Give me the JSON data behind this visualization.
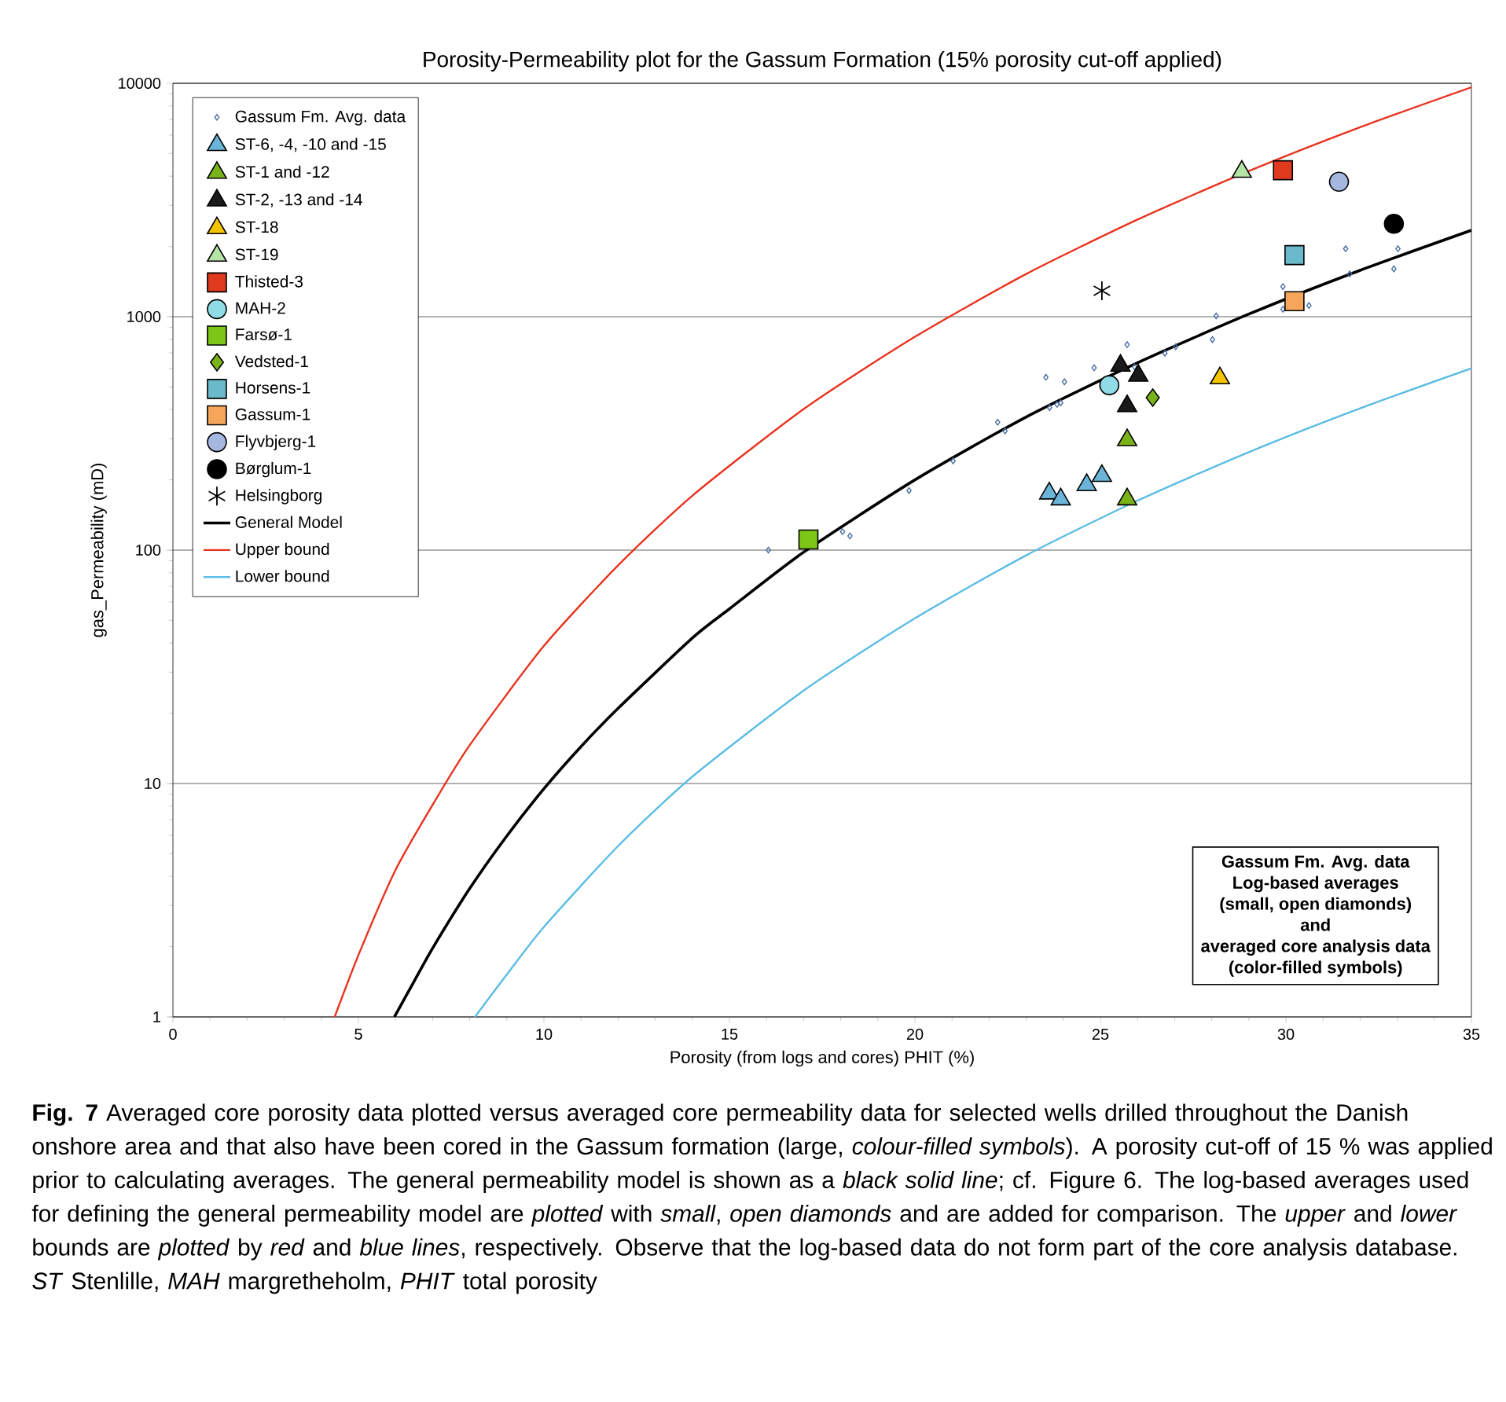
{
  "chart_data": {
    "type": "scatter",
    "title": "Porosity-Permeability plot for the Gassum Formation (15% porosity cut-off applied)",
    "xlabel": "Porosity (from logs and cores) PHIT (%)",
    "ylabel": "gas_Permeability (mD)",
    "xlim": [
      0,
      35
    ],
    "xticks": [
      0,
      5,
      10,
      15,
      20,
      25,
      30,
      35
    ],
    "ylim": [
      1,
      10000
    ],
    "yticks": [
      1,
      10,
      100,
      1000,
      10000
    ],
    "log": "y",
    "grid": "y",
    "legend": "top left",
    "series": [
      {
        "name": "Gassum Fm. Avg. data",
        "type": "scatter",
        "marker": "diamond",
        "color": "#4a6fa5",
        "x": [
          16.05,
          18.05,
          18.25,
          19.84,
          21.03,
          22.23,
          22.43,
          23.53,
          24.03,
          23.63,
          23.83,
          23.93,
          24.83,
          25.72,
          25.92,
          26.74,
          27.03,
          28.02,
          28.12,
          29.92,
          29.92,
          30.62,
          31.61,
          31.72,
          32.91,
          33.02
        ],
        "values": [
          100,
          120,
          115,
          180,
          241,
          353,
          324,
          550,
          526,
          408,
          421,
          428,
          604,
          759,
          610,
          698,
          743,
          798,
          1007,
          1346,
          1077,
          1117,
          1954,
          1525,
          1603,
          1954
        ]
      },
      {
        "name": "ST-6, -4, -10 and -15",
        "type": "scatter",
        "marker": "triangle",
        "color": "#6ab4d8",
        "x": [
          23.62,
          23.93,
          24.63,
          25.04
        ],
        "values": [
          175,
          165,
          190,
          208
        ]
      },
      {
        "name": "ST-1 and -12",
        "type": "scatter",
        "marker": "triangle",
        "color": "#7ab317",
        "x": [
          25.72,
          25.72
        ],
        "values": [
          296,
          165
        ]
      },
      {
        "name": "ST-2, -13 and -14",
        "type": "scatter",
        "marker": "triangle",
        "color": "#1a1a1a",
        "x": [
          25.54,
          26.02,
          25.72
        ],
        "values": [
          617,
          559,
          414
        ]
      },
      {
        "name": "ST-18",
        "type": "scatter",
        "marker": "triangle",
        "color": "#f5c400",
        "x": [
          28.22
        ],
        "values": [
          545
        ]
      },
      {
        "name": "ST-19",
        "type": "scatter",
        "marker": "triangle",
        "color": "#b6e3a6",
        "x": [
          28.81
        ],
        "values": [
          4180
        ]
      },
      {
        "name": "Thisted-3",
        "type": "scatter",
        "marker": "square",
        "color": "#e03a1e",
        "x": [
          29.92
        ],
        "values": [
          4240
        ]
      },
      {
        "name": "MAH-2",
        "type": "scatter",
        "marker": "circle",
        "color": "#8fdbe6",
        "x": [
          25.24
        ],
        "values": [
          509
        ]
      },
      {
        "name": "Farsø-1",
        "type": "scatter",
        "marker": "square",
        "color": "#7dc516",
        "x": [
          17.13
        ],
        "values": [
          111
        ]
      },
      {
        "name": "Vedsted-1",
        "type": "scatter",
        "marker": "diamond",
        "color": "#7ab317",
        "x": [
          26.41
        ],
        "values": [
          450
        ]
      },
      {
        "name": "Horsens-1",
        "type": "scatter",
        "marker": "square",
        "color": "#6bbacb",
        "x": [
          30.23
        ],
        "values": [
          1836
        ]
      },
      {
        "name": "Gassum-1",
        "type": "scatter",
        "marker": "square",
        "color": "#f5a65b",
        "x": [
          30.23
        ],
        "values": [
          1165
        ]
      },
      {
        "name": "Flyvbjerg-1",
        "type": "scatter",
        "marker": "circle",
        "color": "#a5b7de",
        "x": [
          31.43
        ],
        "values": [
          3785
        ]
      },
      {
        "name": "Børglum-1",
        "type": "scatter",
        "marker": "circle",
        "color": "#000000",
        "x": [
          32.91
        ],
        "values": [
          2500
        ]
      },
      {
        "name": "Helsingborg",
        "type": "scatter",
        "marker": "cross",
        "color": "#000000",
        "x": [
          25.04
        ],
        "values": [
          1292
        ]
      },
      {
        "name": "General Model",
        "type": "line",
        "marker": "none",
        "color": "#000000",
        "x": [
          5.97,
          6.5,
          7,
          8,
          9,
          10,
          11,
          12,
          14,
          15,
          17,
          20,
          23,
          26,
          29,
          32,
          35
        ],
        "values": [
          1,
          1.42,
          1.97,
          3.55,
          5.96,
          9.5,
          14.4,
          21,
          42,
          56,
          98,
          200,
          372,
          635,
          1026,
          1580,
          2345
        ]
      },
      {
        "name": "Upper bound",
        "type": "line",
        "marker": "none",
        "color": "#e8321e",
        "x": [
          4.36,
          5,
          6,
          7,
          8,
          10,
          12,
          14,
          17,
          20,
          23,
          26,
          29,
          32,
          35
        ],
        "values": [
          1,
          1.84,
          4.26,
          8.1,
          14.6,
          38.9,
          86,
          171,
          402,
          820,
          1524,
          2606,
          4207,
          6486,
          9616
        ]
      },
      {
        "name": "Lower bound",
        "type": "line",
        "marker": "none",
        "color": "#5bbce4",
        "x": [
          8.14,
          9,
          10,
          12,
          14,
          17,
          20,
          23,
          26,
          29,
          32,
          35
        ],
        "values": [
          1,
          1.52,
          2.43,
          5.4,
          10.7,
          25,
          51,
          95,
          163,
          263,
          405,
          601
        ]
      }
    ],
    "annotations": [
      "Gassum Fm. Avg. data",
      "Log-based averages",
      "(small, open diamonds)",
      "and",
      "averaged core analysis data",
      "(color-filled symbols)",
      "**Fig. 7** Averaged core porosity data plotted versus averaged core permeability data for selected wells drilled throughout the Danish onshore area and that also have been cored in the Gassum formation (large, *colour-filled symbols*). A porosity cut-off of 15 % was applied prior to calculating averages. The general permeability model is shown as a *black solid line*; cf. Figure 6. The log-based averages used for defining the general permeability model are *plotted* with *small*, *open diamonds* and are added for comparison. The *upper* and *lower* bounds are *plotted* by *red* and *blue lines*, respectively. Observe that the log-based data do not form part of the core analysis database. *ST* Stenlille, *MAH* margretheholm, *PHIT* total porosity"
    ]
  }
}
